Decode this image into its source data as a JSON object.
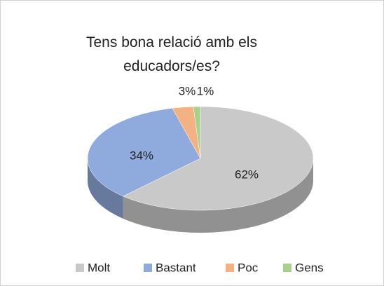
{
  "chart_data": {
    "type": "pie3d",
    "title": "Tens bona relació amb els educadors/es?",
    "categories": [
      "Molt",
      "Bastant",
      "Poc",
      "Gens"
    ],
    "values": [
      62,
      34,
      3,
      1
    ],
    "value_labels": [
      "62%",
      "34%",
      "3%",
      "1%"
    ],
    "colors": [
      "#c9c9c9",
      "#8faadc",
      "#f4b183",
      "#a9d18e"
    ],
    "legend": "bottom"
  }
}
